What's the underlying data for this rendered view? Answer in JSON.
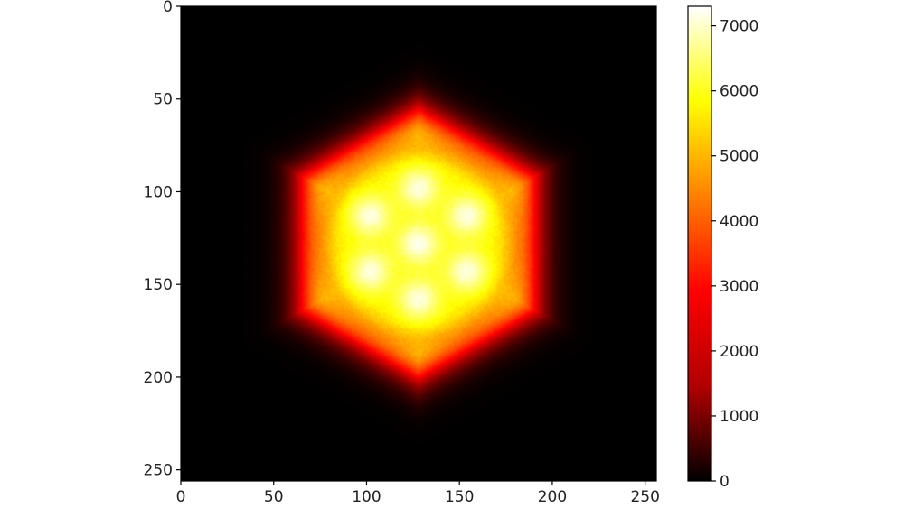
{
  "chart_data": {
    "type": "heatmap",
    "title": "",
    "xlabel": "",
    "ylabel": "",
    "colormap": "hot",
    "colormap_stops": [
      "#000000",
      "#b20000",
      "#ff0000",
      "#ff8000",
      "#ffff00",
      "#ffffff"
    ],
    "image_size": [
      256,
      256
    ],
    "xlim": [
      0,
      256
    ],
    "ylim": [
      256,
      0
    ],
    "x_ticks": [
      0,
      50,
      100,
      150,
      200,
      250
    ],
    "y_ticks": [
      0,
      50,
      100,
      150,
      200,
      250
    ],
    "x_tick_labels": [
      "0",
      "50",
      "100",
      "150",
      "200",
      "250"
    ],
    "y_tick_labels": [
      "0",
      "50",
      "100",
      "150",
      "200",
      "250"
    ],
    "colorbar": {
      "range": [
        0,
        7300
      ],
      "ticks": [
        0,
        1000,
        2000,
        3000,
        4000,
        5000,
        6000,
        7000
      ],
      "tick_labels": [
        "0",
        "1000",
        "2000",
        "3000",
        "4000",
        "5000",
        "6000",
        "7000"
      ]
    },
    "structure": {
      "shape": "hexagon",
      "center": [
        128,
        128
      ],
      "hexagon_circumradius": 72,
      "plateau_value": 5400,
      "background_value": 0,
      "bright_spots": [
        {
          "x": 128,
          "y": 128,
          "value": 7200
        },
        {
          "x": 128,
          "y": 98,
          "value": 7100
        },
        {
          "x": 102,
          "y": 113,
          "value": 7100
        },
        {
          "x": 154,
          "y": 113,
          "value": 7100
        },
        {
          "x": 102,
          "y": 143,
          "value": 7100
        },
        {
          "x": 154,
          "y": 143,
          "value": 7100
        },
        {
          "x": 128,
          "y": 158,
          "value": 7100
        }
      ]
    }
  }
}
